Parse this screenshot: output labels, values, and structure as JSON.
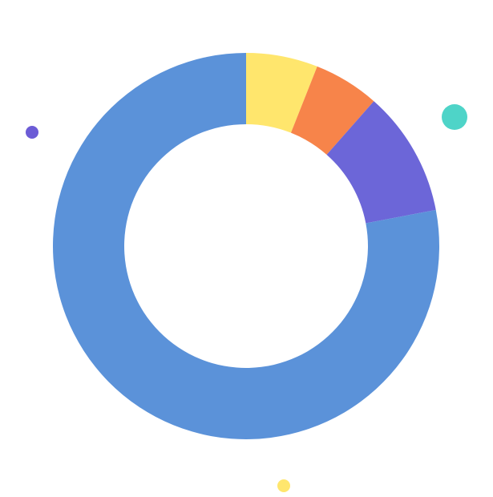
{
  "chart_data": {
    "type": "pie",
    "donut": true,
    "title": "",
    "slices": [
      {
        "value": 6.0,
        "color": "#FFE66D"
      },
      {
        "value": 5.5,
        "color": "#F7844A"
      },
      {
        "value": 10.5,
        "color": "#6C66D8"
      },
      {
        "value": 78.0,
        "color": "#5B92D9"
      }
    ],
    "legend": "none",
    "start_angle": "top",
    "direction": "clockwise"
  },
  "decorations": [
    {
      "name": "decor-dot-purple",
      "color": "#6C5CD6"
    },
    {
      "name": "decor-dot-teal",
      "color": "#4ED4C8"
    },
    {
      "name": "decor-dot-yellow",
      "color": "#FFE66D"
    }
  ]
}
